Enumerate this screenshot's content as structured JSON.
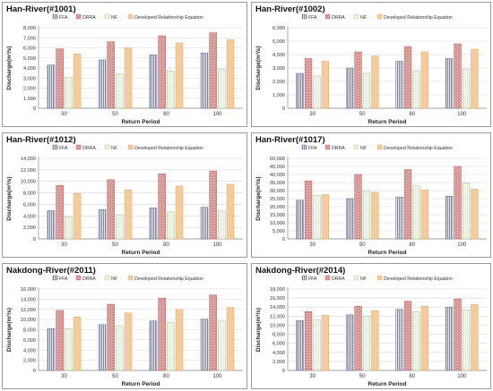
{
  "legend_labels": [
    "FFA",
    "DRRA",
    "NF",
    "Developed Relationship Equation"
  ],
  "colors": {
    "ffa": "#7b86b6",
    "drra": "#c87a78",
    "nf": "#d8e6bc",
    "dre": "#f3cc9e"
  },
  "chart_data": [
    {
      "type": "bar",
      "title": "Han-River(#1001)",
      "xlabel": "Return Period",
      "ylabel": "Discharge(m³/s)",
      "categories": [
        "30",
        "50",
        "80",
        "100"
      ],
      "ylim": [
        0,
        8000
      ],
      "yticks": [
        "0",
        "1,000",
        "2,000",
        "3,000",
        "4,000",
        "5,000",
        "6,000",
        "7,000",
        "8,000"
      ],
      "series": [
        {
          "name": "FFA",
          "values": [
            4300,
            4800,
            5300,
            5500
          ]
        },
        {
          "name": "DRRA",
          "values": [
            5900,
            6600,
            7200,
            7500
          ]
        },
        {
          "name": "NF",
          "values": [
            3100,
            3400,
            3700,
            3900
          ]
        },
        {
          "name": "Developed Relationship Equation",
          "values": [
            5400,
            6000,
            6500,
            6800
          ]
        }
      ],
      "grid": true,
      "legend": "top"
    },
    {
      "type": "bar",
      "title": "Han-River(#1002)",
      "xlabel": "Return Period",
      "ylabel": "Discharge(m³/s)",
      "categories": [
        "30",
        "50",
        "80",
        "100"
      ],
      "ylim": [
        0,
        6000
      ],
      "yticks": [
        "0",
        "1,000",
        "2,000",
        "3,000",
        "4,000",
        "5,000",
        "6,000"
      ],
      "series": [
        {
          "name": "FFA",
          "values": [
            2600,
            3000,
            3500,
            3700
          ]
        },
        {
          "name": "DRRA",
          "values": [
            3700,
            4200,
            4600,
            4800
          ]
        },
        {
          "name": "NF",
          "values": [
            2400,
            2600,
            2800,
            2900
          ]
        },
        {
          "name": "Developed Relationship Equation",
          "values": [
            3500,
            3900,
            4200,
            4400
          ]
        }
      ],
      "grid": true,
      "legend": "top"
    },
    {
      "type": "bar",
      "title": "Han-River(#1012)",
      "xlabel": "Return Period",
      "ylabel": "Discharge(m³/s)",
      "categories": [
        "30",
        "50",
        "80",
        "100"
      ],
      "ylim": [
        0,
        14000
      ],
      "yticks": [
        "0",
        "2,000",
        "4,000",
        "6,000",
        "8,000",
        "10,000",
        "12,000",
        "14,000"
      ],
      "series": [
        {
          "name": "FFA",
          "values": [
            4900,
            5100,
            5400,
            5500
          ]
        },
        {
          "name": "DRRA",
          "values": [
            9300,
            10300,
            11300,
            11800
          ]
        },
        {
          "name": "NF",
          "values": [
            3800,
            4200,
            4700,
            4900
          ]
        },
        {
          "name": "Developed Relationship Equation",
          "values": [
            7900,
            8500,
            9200,
            9500
          ]
        }
      ],
      "grid": true,
      "legend": "top"
    },
    {
      "type": "bar",
      "title": "Han-River(#1017)",
      "xlabel": "Return Period",
      "ylabel": "Discharge(m³/s)",
      "categories": [
        "30",
        "50",
        "80",
        "100"
      ],
      "ylim": [
        0,
        50000
      ],
      "yticks": [
        "0",
        "5,000",
        "10,000",
        "15,000",
        "20,000",
        "25,000",
        "30,000",
        "35,000",
        "40,000",
        "45,000",
        "50,000"
      ],
      "series": [
        {
          "name": "FFA",
          "values": [
            24000,
            25000,
            26000,
            26500
          ]
        },
        {
          "name": "DRRA",
          "values": [
            36000,
            40000,
            43000,
            45000
          ]
        },
        {
          "name": "NF",
          "values": [
            27000,
            30000,
            33000,
            34500
          ]
        },
        {
          "name": "Developed Relationship Equation",
          "values": [
            27500,
            29000,
            30500,
            31000
          ]
        }
      ],
      "grid": true,
      "legend": "top"
    },
    {
      "type": "bar",
      "title": "Nakdong-River(#2011)",
      "xlabel": "Return Period",
      "ylabel": "Discharge(m³/s)",
      "categories": [
        "30",
        "50",
        "80",
        "100"
      ],
      "ylim": [
        0,
        16000
      ],
      "yticks": [
        "0",
        "2,000",
        "4,000",
        "6,000",
        "8,000",
        "10,000",
        "12,000",
        "14,000",
        "16,000"
      ],
      "series": [
        {
          "name": "FFA",
          "values": [
            8200,
            9000,
            9700,
            10100
          ]
        },
        {
          "name": "DRRA",
          "values": [
            11800,
            13000,
            14200,
            14800
          ]
        },
        {
          "name": "NF",
          "values": [
            8200,
            8800,
            9400,
            9700
          ]
        },
        {
          "name": "Developed Relationship Equation",
          "values": [
            10500,
            11300,
            12000,
            12400
          ]
        }
      ],
      "grid": true,
      "legend": "top"
    },
    {
      "type": "bar",
      "title": "Nakdong-River(#2014)",
      "xlabel": "Return Period",
      "ylabel": "Discharge(m³/s)",
      "categories": [
        "30",
        "50",
        "80",
        "100"
      ],
      "ylim": [
        0,
        18000
      ],
      "yticks": [
        "0",
        "2,000",
        "4,000",
        "6,000",
        "8,000",
        "10,000",
        "12,000",
        "14,000",
        "16,000",
        "18,000"
      ],
      "series": [
        {
          "name": "FFA",
          "values": [
            11000,
            12300,
            13500,
            14000
          ]
        },
        {
          "name": "DRRA",
          "values": [
            13000,
            14200,
            15300,
            15800
          ]
        },
        {
          "name": "NF",
          "values": [
            11200,
            12000,
            13000,
            13400
          ]
        },
        {
          "name": "Developed Relationship Equation",
          "values": [
            12200,
            13200,
            14200,
            14600
          ]
        }
      ],
      "grid": true,
      "legend": "top"
    }
  ]
}
